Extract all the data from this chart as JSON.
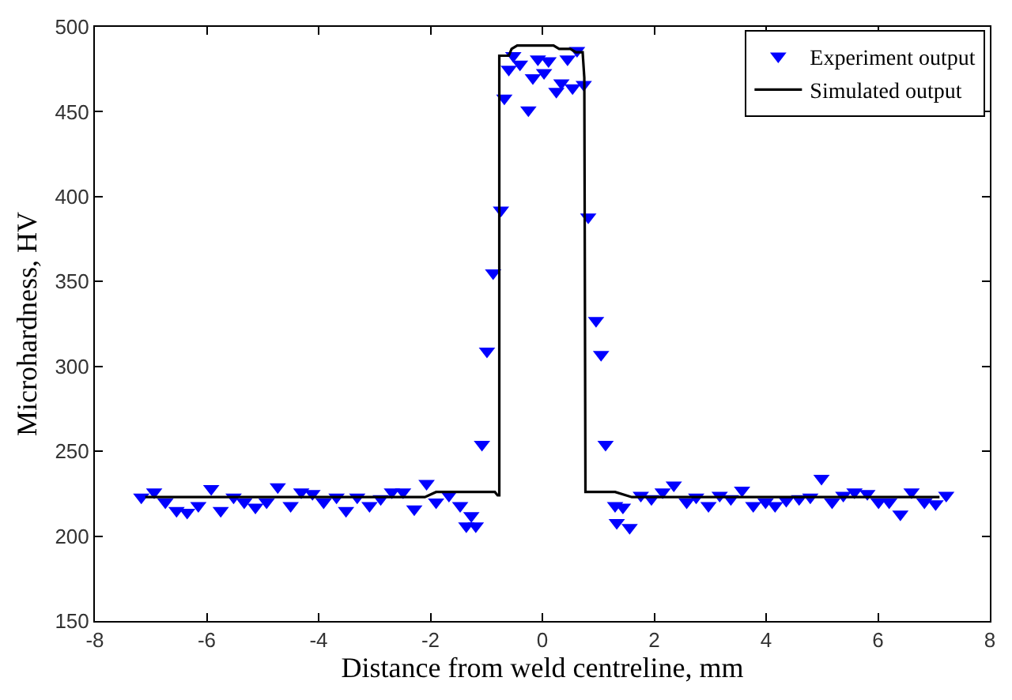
{
  "chart_data": {
    "type": "scatter",
    "xlabel": "Distance from weld centreline, mm",
    "ylabel": "Microhardness, HV",
    "xlim": [
      -8,
      8
    ],
    "xticks": [
      -8,
      -6,
      -4,
      -2,
      0,
      2,
      4,
      6,
      8
    ],
    "ylim": [
      150,
      500
    ],
    "yticks": [
      150,
      200,
      250,
      300,
      350,
      400,
      450,
      500
    ],
    "grid": false,
    "legend": "top right",
    "series": [
      {
        "name": "Experiment output",
        "marker": "triangle-down",
        "color": "#0000ff",
        "x": [
          -7.17,
          -6.94,
          -6.74,
          -6.54,
          -6.35,
          -6.15,
          -5.92,
          -5.75,
          -5.52,
          -5.33,
          -5.13,
          -4.93,
          -4.73,
          -4.5,
          -4.31,
          -4.11,
          -3.91,
          -3.68,
          -3.51,
          -3.31,
          -3.09,
          -2.89,
          -2.69,
          -2.49,
          -2.29,
          -2.07,
          -1.9,
          -1.67,
          -1.47,
          -1.27,
          -1.36,
          -1.19,
          -1.08,
          -0.99,
          -0.88,
          -0.74,
          -0.68,
          -0.6,
          -0.52,
          -0.4,
          -0.25,
          -0.17,
          -0.08,
          0.03,
          0.11,
          0.25,
          0.34,
          0.45,
          0.54,
          0.62,
          0.74,
          0.82,
          0.96,
          1.05,
          1.13,
          1.3,
          1.44,
          1.33,
          1.56,
          1.76,
          1.95,
          2.15,
          2.35,
          2.58,
          2.75,
          2.97,
          3.17,
          3.37,
          3.57,
          3.77,
          3.99,
          4.16,
          4.36,
          4.59,
          4.79,
          4.99,
          5.18,
          5.38,
          5.58,
          5.81,
          6.01,
          6.2,
          6.4,
          6.6,
          6.83,
          7.03,
          7.22
        ],
        "values": [
          223,
          226,
          220,
          215,
          214,
          218,
          228,
          215,
          223,
          220,
          217,
          220,
          229,
          218,
          226,
          225,
          220,
          223,
          215,
          223,
          218,
          222,
          226,
          226,
          216,
          231,
          220,
          224,
          218,
          212,
          206,
          206,
          254,
          309,
          355,
          392,
          458,
          475,
          483,
          478,
          451,
          470,
          481,
          473,
          480,
          462,
          467,
          481,
          464,
          486,
          466,
          388,
          327,
          307,
          254,
          218,
          217,
          208,
          205,
          224,
          222,
          226,
          230,
          220,
          223,
          218,
          224,
          222,
          227,
          218,
          220,
          218,
          221,
          222,
          223,
          234,
          220,
          224,
          226,
          225,
          220,
          220,
          213,
          226,
          220,
          219,
          224
        ]
      },
      {
        "name": "Simulated output",
        "type": "line",
        "marker": "none",
        "line_style": "solid",
        "color": "#000000",
        "x": [
          -7.1,
          -2.1,
          -1.9,
          -0.85,
          -0.8,
          -0.77,
          -0.77,
          -0.6,
          -0.55,
          -0.45,
          0.2,
          0.3,
          0.5,
          0.6,
          0.72,
          0.75,
          0.77,
          1.3,
          1.6,
          7.1
        ],
        "values": [
          223,
          223,
          226,
          226,
          224,
          224,
          483,
          483,
          487,
          489,
          489,
          487,
          487,
          485,
          485,
          470,
          226,
          226,
          223,
          223
        ]
      }
    ]
  }
}
